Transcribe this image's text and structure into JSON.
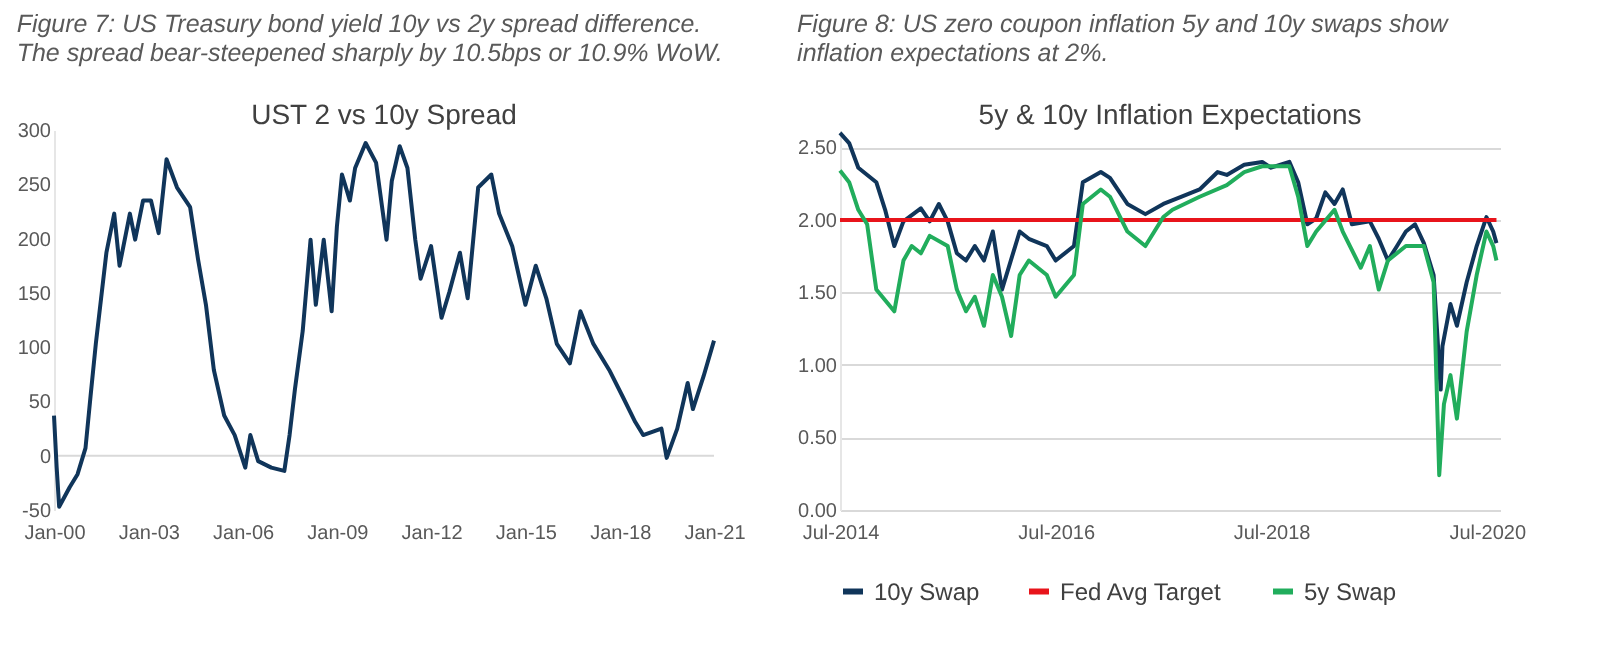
{
  "chart_data": [
    {
      "type": "line",
      "title": "Figure 7: US Treasury bond yield 10y vs 2y spread difference. The spread bear-steepened sharply by 10.5bps or 10.9% WoW.",
      "subtitle": "UST 2 vs 10y Spread",
      "x": [
        "2000-01",
        "2000-02",
        "2000-03",
        "2000-07",
        "2000-10",
        "2001-01",
        "2001-03",
        "2001-05",
        "2001-09",
        "2001-12",
        "2002-02",
        "2002-06",
        "2002-08",
        "2002-11",
        "2003-02",
        "2003-05",
        "2003-08",
        "2003-12",
        "2004-05",
        "2004-08",
        "2004-11",
        "2005-02",
        "2005-06",
        "2005-10",
        "2006-02",
        "2006-04",
        "2006-07",
        "2006-12",
        "2007-05",
        "2007-07",
        "2007-09",
        "2007-12",
        "2008-03",
        "2008-05",
        "2008-08",
        "2008-11",
        "2009-01",
        "2009-03",
        "2009-06",
        "2009-08",
        "2009-12",
        "2010-04",
        "2010-08",
        "2010-10",
        "2011-01",
        "2011-04",
        "2011-07",
        "2011-09",
        "2012-01",
        "2012-05",
        "2012-08",
        "2012-12",
        "2013-03",
        "2013-07",
        "2013-12",
        "2014-03",
        "2014-08",
        "2015-01",
        "2015-05",
        "2015-09",
        "2016-01",
        "2016-06",
        "2016-10",
        "2017-03",
        "2017-09",
        "2018-02",
        "2018-07",
        "2018-10",
        "2019-05",
        "2019-07",
        "2019-11",
        "2020-03",
        "2020-05",
        "2020-09",
        "2021-01"
      ],
      "series": [
        {
          "color": "#10355a",
          "values": [
            37,
            -11,
            -47,
            -29,
            -17,
            7,
            55,
            103,
            187,
            223,
            175,
            223,
            199,
            235,
            235,
            205,
            273,
            247,
            229,
            181,
            139,
            79,
            37,
            19,
            -11,
            19,
            -5,
            -11,
            -14,
            19,
            61,
            115,
            199,
            139,
            199,
            133,
            211,
            259,
            235,
            265,
            288,
            270,
            199,
            253,
            285,
            265,
            199,
            163,
            193,
            127,
            151,
            187,
            145,
            247,
            259,
            223,
            193,
            139,
            175,
            145,
            103,
            85,
            133,
            103,
            79,
            55,
            31,
            19,
            25,
            -2,
            25,
            67,
            43,
            73,
            106
          ]
        }
      ],
      "xlim": [
        "2000-01",
        "2021-01"
      ],
      "xticks": [
        {
          "value": "2000-01",
          "label": "Jan-00"
        },
        {
          "value": "2003-01",
          "label": "Jan-03"
        },
        {
          "value": "2006-01",
          "label": "Jan-06"
        },
        {
          "value": "2009-01",
          "label": "Jan-09"
        },
        {
          "value": "2012-01",
          "label": "Jan-12"
        },
        {
          "value": "2015-01",
          "label": "Jan-15"
        },
        {
          "value": "2018-01",
          "label": "Jan-18"
        },
        {
          "value": "2021-01",
          "label": "Jan-21"
        }
      ],
      "ylim": [
        -50,
        300
      ],
      "yticks": [
        -50,
        0,
        50,
        100,
        150,
        200,
        250,
        300
      ],
      "ref_lines": [
        {
          "axis": "y",
          "value": 0,
          "color": "#d9d9d9"
        }
      ],
      "grid": false,
      "legend": false
    },
    {
      "type": "line",
      "title": "Figure 8: US zero coupon inflation 5y and 10y swaps show inflation expectations at 2%.",
      "subtitle": "5y & 10y Inflation Expectations",
      "series": [
        {
          "name": "10y Swap",
          "color": "#10355a",
          "x": [
            "2014-07-01",
            "2014-08-01",
            "2014-09-01",
            "2014-11-01",
            "2014-12-01",
            "2015-01-01",
            "2015-02-01",
            "2015-04-01",
            "2015-05-01",
            "2015-06-01",
            "2015-07-01",
            "2015-08-01",
            "2015-09-01",
            "2015-10-01",
            "2015-11-01",
            "2015-12-01",
            "2016-01-01",
            "2016-03-01",
            "2016-04-01",
            "2016-06-01",
            "2016-07-01",
            "2016-09-01",
            "2016-10-01",
            "2016-12-01",
            "2017-01-01",
            "2017-03-01",
            "2017-05-01",
            "2017-07-01",
            "2017-09-01",
            "2017-11-01",
            "2018-01-01",
            "2018-02-01",
            "2018-04-01",
            "2018-06-01",
            "2018-07-01",
            "2018-09-01",
            "2018-10-01",
            "2018-11-01",
            "2018-12-01",
            "2019-01-01",
            "2019-02-01",
            "2019-03-01",
            "2019-04-01",
            "2019-06-01",
            "2019-07-01",
            "2019-08-01",
            "2019-09-01",
            "2019-10-01",
            "2019-11-01",
            "2019-12-01",
            "2020-01-03",
            "2020-01-27",
            "2020-02-02",
            "2020-02-29",
            "2020-03-22",
            "2020-04-24",
            "2020-05-28",
            "2020-06-30",
            "2020-07-23",
            "2020-08-03"
          ],
          "values": [
            2.6,
            2.53,
            2.36,
            2.26,
            2.07,
            1.82,
            1.99,
            2.08,
            1.99,
            2.11,
            1.99,
            1.77,
            1.72,
            1.82,
            1.72,
            1.92,
            1.52,
            1.92,
            1.87,
            1.82,
            1.72,
            1.82,
            2.26,
            2.33,
            2.29,
            2.11,
            2.04,
            2.11,
            2.16,
            2.21,
            2.33,
            2.31,
            2.38,
            2.4,
            2.36,
            2.4,
            2.26,
            1.97,
            2.01,
            2.19,
            2.11,
            2.21,
            1.97,
            1.99,
            1.87,
            1.72,
            1.82,
            1.92,
            1.97,
            1.84,
            1.62,
            0.83,
            1.13,
            1.42,
            1.27,
            1.57,
            1.82,
            2.02,
            1.92,
            1.84
          ]
        },
        {
          "name": "Fed Avg Target",
          "color": "#e8141b",
          "x": [
            "2014-07-01",
            "2020-08-03"
          ],
          "values": [
            2.0,
            2.0
          ]
        },
        {
          "name": "5y Swap",
          "color": "#21ad5c",
          "x": [
            "2014-07-01",
            "2014-08-01",
            "2014-09-01",
            "2014-10-01",
            "2014-11-01",
            "2015-01-01",
            "2015-02-01",
            "2015-03-01",
            "2015-04-01",
            "2015-05-01",
            "2015-07-01",
            "2015-08-01",
            "2015-09-01",
            "2015-10-01",
            "2015-11-01",
            "2015-12-01",
            "2016-01-01",
            "2016-02-01",
            "2016-03-01",
            "2016-04-01",
            "2016-06-01",
            "2016-07-01",
            "2016-09-01",
            "2016-10-01",
            "2016-12-01",
            "2017-01-01",
            "2017-03-01",
            "2017-05-01",
            "2017-07-01",
            "2017-08-01",
            "2017-11-01",
            "2018-02-01",
            "2018-04-01",
            "2018-06-01",
            "2018-09-01",
            "2018-10-01",
            "2018-11-01",
            "2018-12-01",
            "2019-02-01",
            "2019-03-01",
            "2019-05-01",
            "2019-06-01",
            "2019-07-01",
            "2019-08-01",
            "2019-10-01",
            "2019-12-01",
            "2020-01-03",
            "2020-01-22",
            "2020-02-07",
            "2020-02-29",
            "2020-03-22",
            "2020-04-24",
            "2020-05-28",
            "2020-06-30",
            "2020-07-23",
            "2020-08-03"
          ],
          "values": [
            2.34,
            2.26,
            2.07,
            1.97,
            1.52,
            1.37,
            1.72,
            1.82,
            1.77,
            1.89,
            1.82,
            1.52,
            1.37,
            1.47,
            1.27,
            1.62,
            1.47,
            1.2,
            1.62,
            1.72,
            1.62,
            1.47,
            1.62,
            2.11,
            2.21,
            2.16,
            1.92,
            1.82,
            2.02,
            2.07,
            2.16,
            2.24,
            2.33,
            2.37,
            2.37,
            2.16,
            1.82,
            1.92,
            2.07,
            1.92,
            1.67,
            1.82,
            1.52,
            1.72,
            1.82,
            1.82,
            1.57,
            0.24,
            0.73,
            0.93,
            0.63,
            1.23,
            1.62,
            1.92,
            1.82,
            1.72
          ]
        }
      ],
      "xlim": [
        "2014-07-01",
        "2020-08-15"
      ],
      "xticks": [
        {
          "value": "2014-07-01",
          "label": "Jul-2014"
        },
        {
          "value": "2016-07-01",
          "label": "Jul-2016"
        },
        {
          "value": "2018-07-01",
          "label": "Jul-2018"
        },
        {
          "value": "2020-07-01",
          "label": "Jul-2020"
        }
      ],
      "ylim": [
        0,
        2.62
      ],
      "yticks": [
        {
          "value": 0,
          "label": "0.00"
        },
        {
          "value": 0.5,
          "label": "0.50"
        },
        {
          "value": 1,
          "label": "1.00"
        },
        {
          "value": 1.5,
          "label": "1.50"
        },
        {
          "value": 2,
          "label": "2.00"
        },
        {
          "value": 2.5,
          "label": "2.50"
        }
      ],
      "grid": "y",
      "legend": "bottom"
    }
  ]
}
